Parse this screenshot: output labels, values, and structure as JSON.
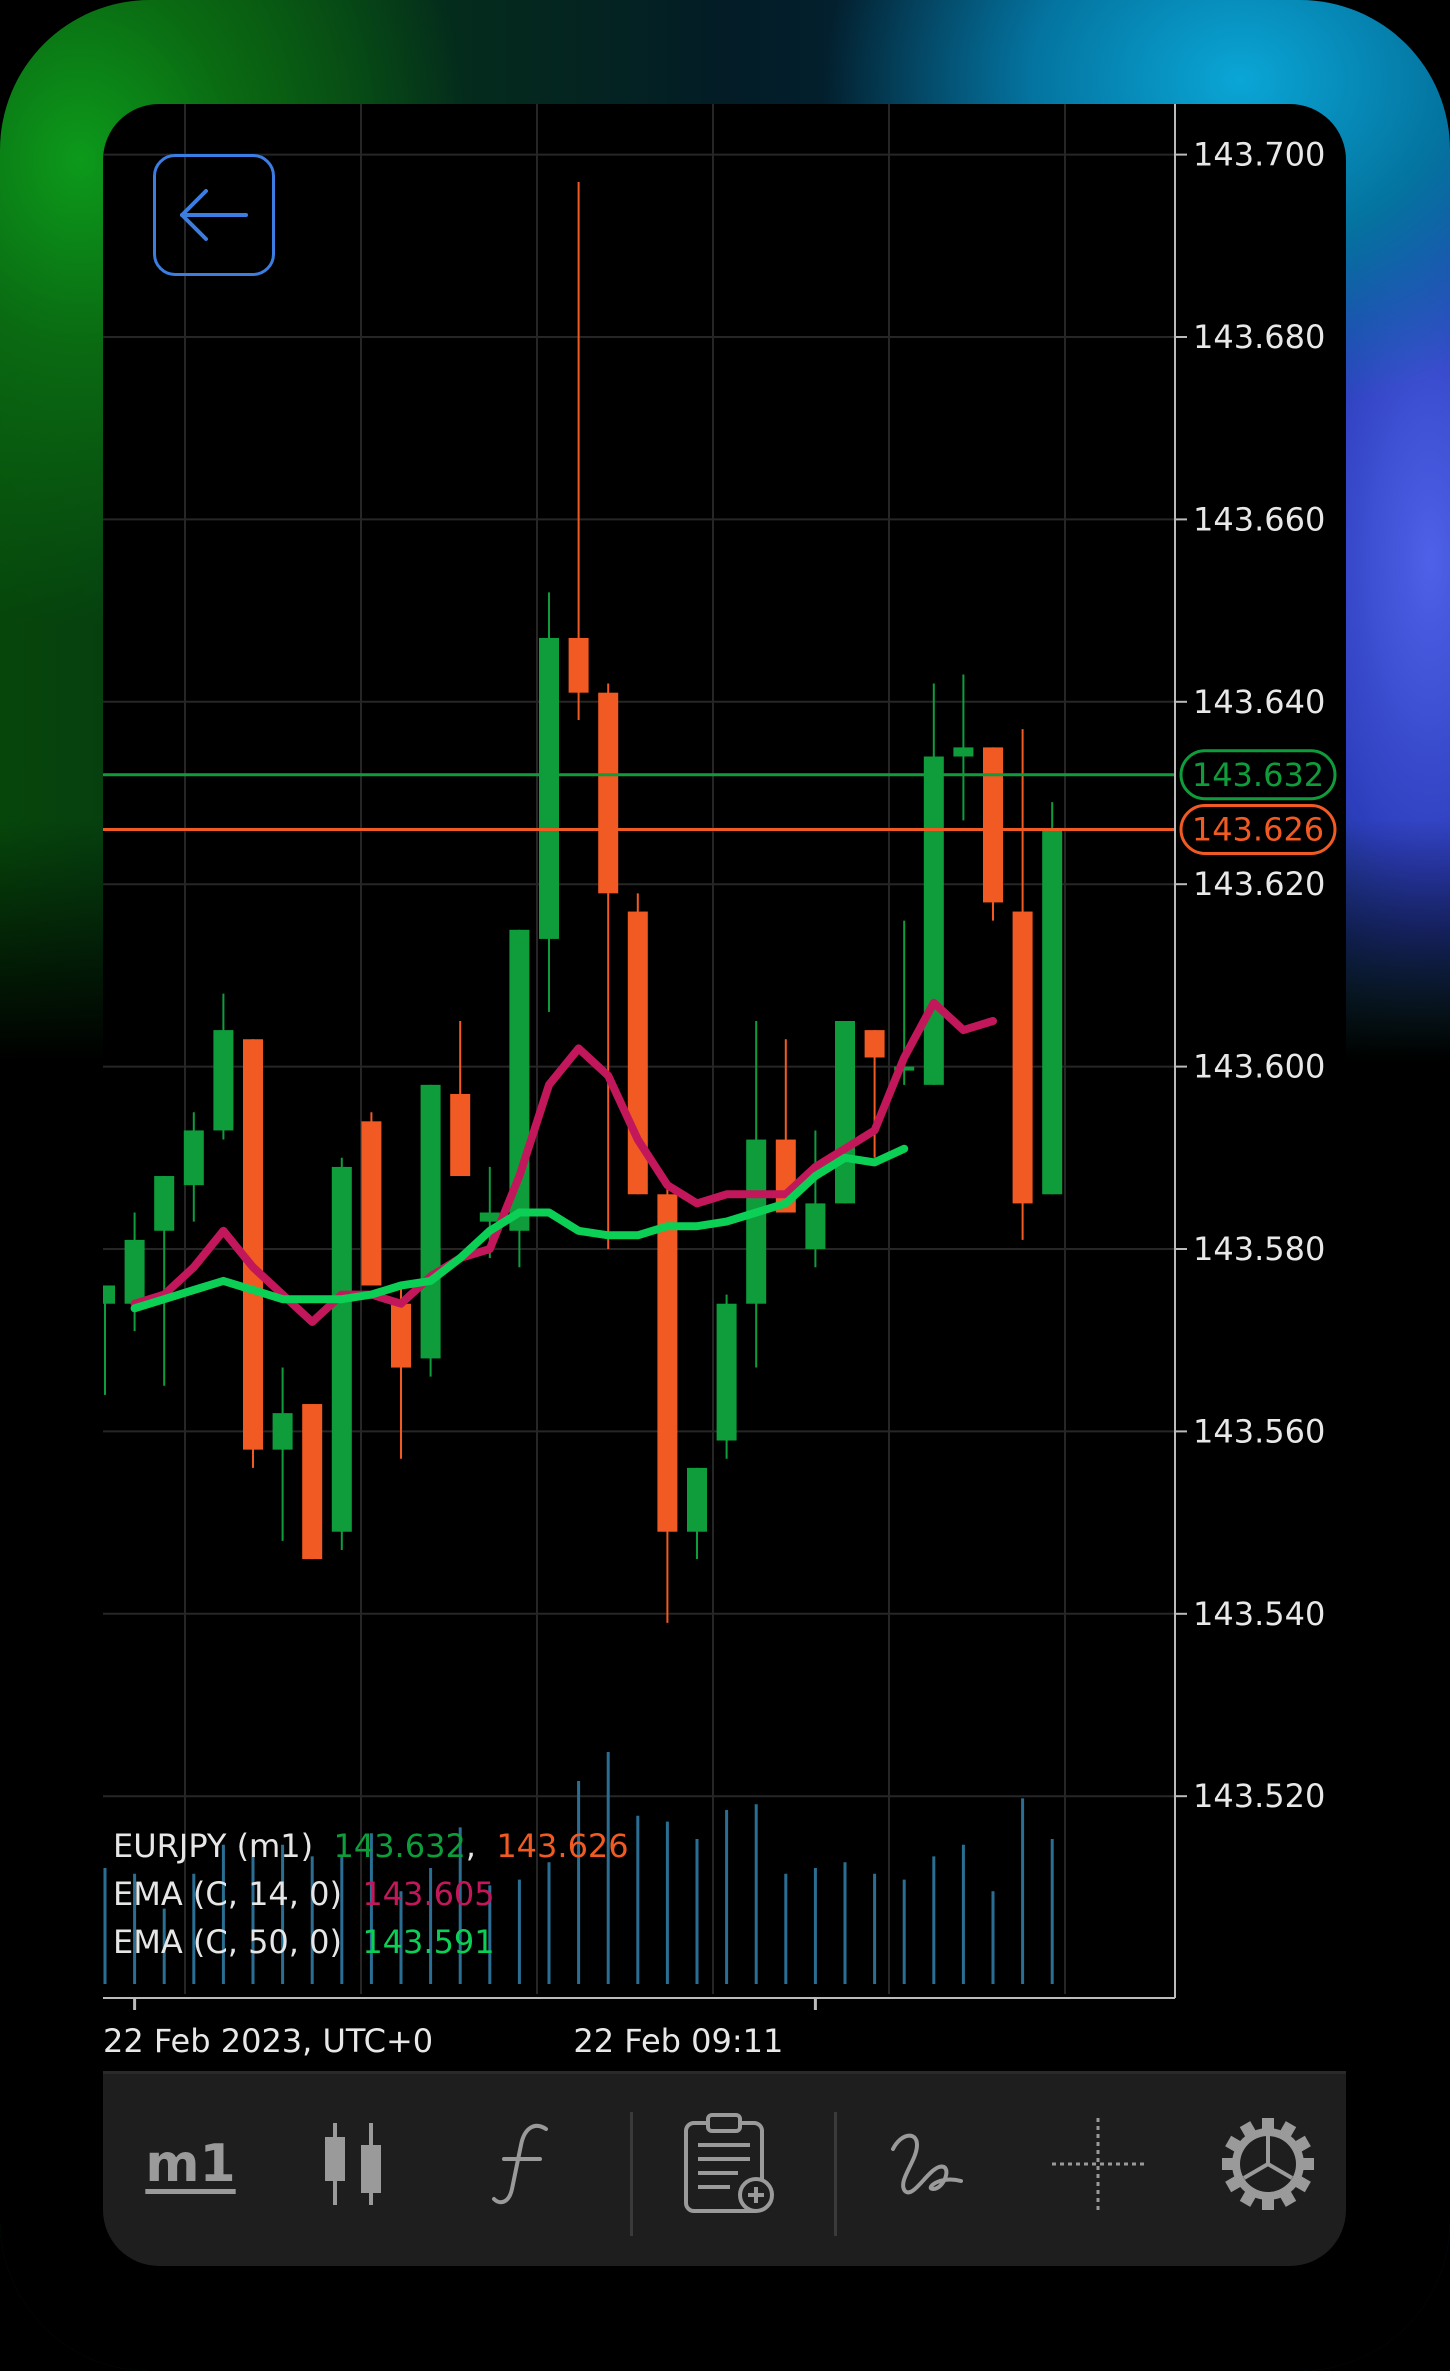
{
  "chart_data": {
    "type": "candlestick",
    "symbol": "EURJPY",
    "timeframe": "m1",
    "ylim": [
      143.5,
      143.705
    ],
    "y_ticks": [
      "143.700",
      "143.680",
      "143.660",
      "143.640",
      "143.620",
      "143.600",
      "143.580",
      "143.560",
      "143.540",
      "143.520"
    ],
    "x_labels": [
      {
        "text": "22 Feb 2023, UTC+0",
        "at_bar": 1
      },
      {
        "text": "22 Feb 09:11",
        "at_bar": 24
      }
    ],
    "price_lines": {
      "ask": {
        "value": 143.632,
        "label": "143.632",
        "color": "#0f9d3c"
      },
      "bid": {
        "value": 143.626,
        "label": "143.626",
        "color": "#f15a22"
      }
    },
    "candles": [
      {
        "o": 143.574,
        "h": 143.576,
        "l": 143.564,
        "c": 143.576
      },
      {
        "o": 143.574,
        "h": 143.584,
        "l": 143.571,
        "c": 143.581
      },
      {
        "o": 143.582,
        "h": 143.588,
        "l": 143.565,
        "c": 143.588
      },
      {
        "o": 143.587,
        "h": 143.595,
        "l": 143.583,
        "c": 143.593
      },
      {
        "o": 143.593,
        "h": 143.608,
        "l": 143.592,
        "c": 143.604
      },
      {
        "o": 143.603,
        "h": 143.603,
        "l": 143.556,
        "c": 143.558
      },
      {
        "o": 143.558,
        "h": 143.567,
        "l": 143.548,
        "c": 143.562
      },
      {
        "o": 143.563,
        "h": 143.563,
        "l": 143.546,
        "c": 143.546
      },
      {
        "o": 143.549,
        "h": 143.59,
        "l": 143.547,
        "c": 143.589
      },
      {
        "o": 143.594,
        "h": 143.595,
        "l": 143.576,
        "c": 143.576
      },
      {
        "o": 143.574,
        "h": 143.576,
        "l": 143.557,
        "c": 143.567
      },
      {
        "o": 143.568,
        "h": 143.598,
        "l": 143.566,
        "c": 143.598
      },
      {
        "o": 143.597,
        "h": 143.605,
        "l": 143.588,
        "c": 143.588
      },
      {
        "o": 143.583,
        "h": 143.589,
        "l": 143.579,
        "c": 143.584
      },
      {
        "o": 143.582,
        "h": 143.615,
        "l": 143.578,
        "c": 143.615
      },
      {
        "o": 143.614,
        "h": 143.652,
        "l": 143.606,
        "c": 143.647
      },
      {
        "o": 143.647,
        "h": 143.697,
        "l": 143.638,
        "c": 143.641
      },
      {
        "o": 143.641,
        "h": 143.642,
        "l": 143.58,
        "c": 143.619
      },
      {
        "o": 143.617,
        "h": 143.619,
        "l": 143.586,
        "c": 143.586
      },
      {
        "o": 143.586,
        "h": 143.587,
        "l": 143.539,
        "c": 143.549
      },
      {
        "o": 143.549,
        "h": 143.556,
        "l": 143.546,
        "c": 143.556
      },
      {
        "o": 143.559,
        "h": 143.575,
        "l": 143.557,
        "c": 143.574
      },
      {
        "o": 143.574,
        "h": 143.605,
        "l": 143.567,
        "c": 143.592
      },
      {
        "o": 143.592,
        "h": 143.603,
        "l": 143.584,
        "c": 143.584
      },
      {
        "o": 143.58,
        "h": 143.593,
        "l": 143.578,
        "c": 143.585
      },
      {
        "o": 143.585,
        "h": 143.605,
        "l": 143.585,
        "c": 143.605
      },
      {
        "o": 143.604,
        "h": 143.604,
        "l": 143.59,
        "c": 143.601
      },
      {
        "o": 143.6,
        "h": 143.616,
        "l": 143.598,
        "c": 143.6
      },
      {
        "o": 143.598,
        "h": 143.642,
        "l": 143.598,
        "c": 143.634
      },
      {
        "o": 143.634,
        "h": 143.643,
        "l": 143.627,
        "c": 143.635
      },
      {
        "o": 143.635,
        "h": 143.635,
        "l": 143.616,
        "c": 143.618
      },
      {
        "o": 143.617,
        "h": 143.637,
        "l": 143.581,
        "c": 143.585
      },
      {
        "o": 143.586,
        "h": 143.629,
        "l": 143.586,
        "c": 143.626
      }
    ],
    "volume": [
      20,
      19,
      13,
      19,
      24,
      25,
      24,
      22,
      22,
      26,
      16,
      20,
      27,
      17,
      18,
      21,
      35,
      40,
      29,
      28,
      25,
      30,
      31,
      19,
      20,
      21,
      19,
      18,
      22,
      24,
      16,
      32,
      25
    ],
    "series": [
      {
        "name": "EMA (C, 14, 0)",
        "color": "#c2185b",
        "values": [
          143.574,
          143.575,
          143.578,
          143.582,
          143.578,
          143.575,
          143.572,
          143.575,
          143.575,
          143.574,
          143.577,
          143.579,
          143.58,
          143.588,
          143.598,
          143.602,
          143.599,
          143.592,
          143.587,
          143.585,
          143.586,
          143.586,
          143.586,
          143.589,
          143.591,
          143.593,
          143.601,
          143.607,
          143.604,
          143.605
        ]
      },
      {
        "name": "EMA (C, 50, 0)",
        "color": "#0ccf55",
        "values": [
          143.5735,
          143.5745,
          143.5755,
          143.5765,
          143.5755,
          143.5745,
          143.5745,
          143.5745,
          143.575,
          143.576,
          143.5765,
          143.579,
          143.582,
          143.584,
          143.584,
          143.582,
          143.5815,
          143.5815,
          143.5825,
          143.5825,
          143.583,
          143.584,
          143.585,
          143.588,
          143.59,
          143.5895,
          143.591
        ]
      }
    ]
  },
  "legend": {
    "symbol_label": "EURJPY (m1)",
    "ask_value": "143.632",
    "separator": ",",
    "bid_value": "143.626",
    "ema14_label": "EMA (C, 14, 0)",
    "ema14_value": "143.605",
    "ema50_label": "EMA (C, 50, 0)",
    "ema50_value": "143.591"
  },
  "toolbar": {
    "timeframe_label": "m1",
    "icons": [
      "candlestick-icon",
      "function-icon",
      "add-to-watchlist-icon",
      "drawing-tool-icon",
      "crosshair-icon",
      "settings-gear-icon"
    ]
  },
  "colors": {
    "bull": "#0f9d3c",
    "bear": "#f15a22",
    "volume": "#2a6f93",
    "grid": "#262626",
    "axis_text": "#e8e8e8",
    "back_button": "#3b7de0"
  }
}
